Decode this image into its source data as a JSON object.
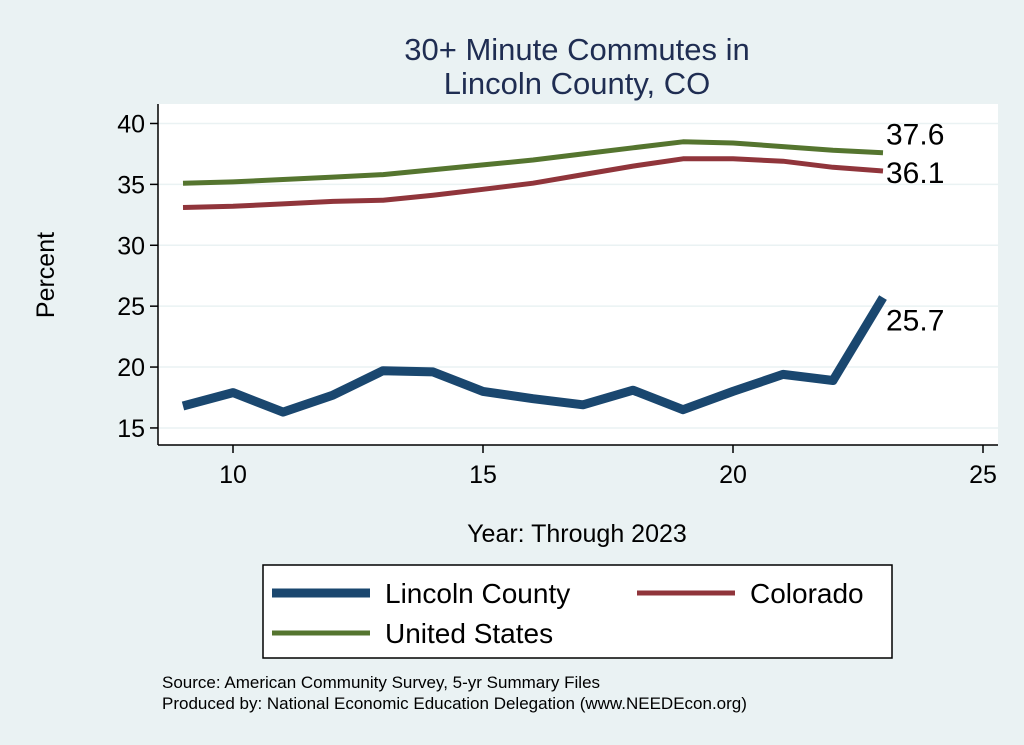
{
  "chart_data": {
    "type": "line",
    "title_lines": [
      "30+ Minute Commutes in",
      "Lincoln County, CO"
    ],
    "xlabel": "Year: Through 2023",
    "ylabel": "Percent",
    "xlim": [
      8.5,
      25.3
    ],
    "ylim": [
      13.6,
      41.6
    ],
    "xticks": [
      10,
      15,
      20,
      25
    ],
    "yticks": [
      15,
      20,
      25,
      30,
      35,
      40
    ],
    "grid": true,
    "legend_position": "bottom",
    "series": [
      {
        "name": "Lincoln County",
        "color": "#1a476f",
        "style": "thick",
        "end_label": "25.7",
        "x": [
          9,
          10,
          11,
          12,
          13,
          14,
          15,
          16,
          17,
          18,
          19,
          20,
          21,
          22,
          23
        ],
        "y": [
          16.8,
          17.9,
          16.3,
          17.7,
          19.7,
          19.6,
          18.0,
          17.4,
          16.9,
          18.1,
          16.5,
          18.0,
          19.4,
          18.9,
          25.7
        ]
      },
      {
        "name": "Colorado",
        "color": "#90353b",
        "style": "medium",
        "end_label": "36.1",
        "x": [
          9,
          10,
          11,
          12,
          13,
          14,
          15,
          16,
          17,
          18,
          19,
          20,
          21,
          22,
          23
        ],
        "y": [
          33.1,
          33.2,
          33.4,
          33.6,
          33.7,
          34.1,
          34.6,
          35.1,
          35.8,
          36.5,
          37.1,
          37.1,
          36.9,
          36.4,
          36.1
        ]
      },
      {
        "name": "United States",
        "color": "#55752f",
        "style": "medium",
        "end_label": "37.6",
        "x": [
          9,
          10,
          11,
          12,
          13,
          14,
          15,
          16,
          17,
          18,
          19,
          20,
          21,
          22,
          23
        ],
        "y": [
          35.1,
          35.2,
          35.4,
          35.6,
          35.8,
          36.2,
          36.6,
          37.0,
          37.5,
          38.0,
          38.5,
          38.4,
          38.1,
          37.8,
          37.6
        ]
      }
    ]
  },
  "source_lines": [
    "Source: American Community Survey, 5-yr Summary Files",
    "Produced by: National Economic Education Delegation (www.NEEDEcon.org)"
  ]
}
